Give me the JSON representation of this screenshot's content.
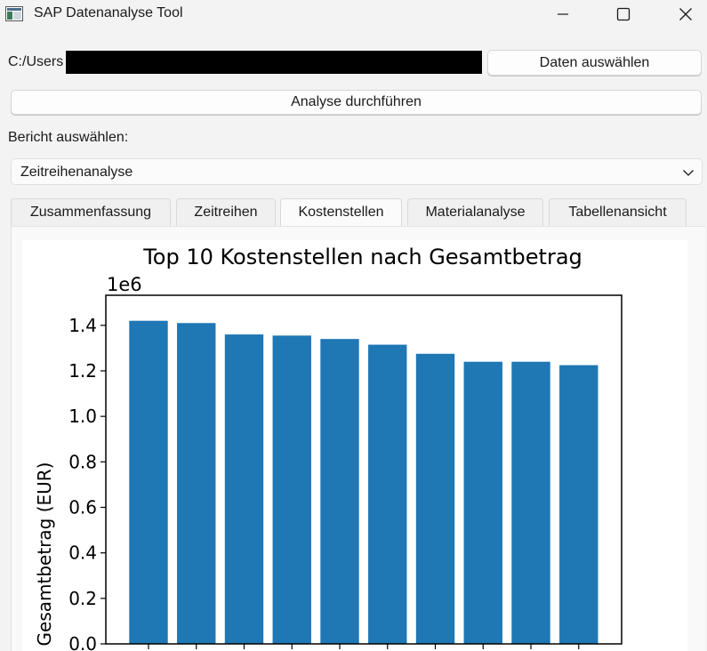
{
  "window": {
    "title": "SAP Datenanalyse Tool"
  },
  "file": {
    "path_visible": "C:/Users"
  },
  "buttons": {
    "select_data": "Daten auswählen",
    "run_analysis": "Analyse durchführen"
  },
  "report": {
    "label": "Bericht auswählen:",
    "selected": "Zeitreihenanalyse"
  },
  "tabs": [
    {
      "label": "Zusammenfassung",
      "active": false
    },
    {
      "label": "Zeitreihen",
      "active": false
    },
    {
      "label": "Kostenstellen",
      "active": true
    },
    {
      "label": "Materialanalyse",
      "active": false
    },
    {
      "label": "Tabellenansicht",
      "active": false
    }
  ],
  "chart_data": {
    "type": "bar",
    "title": "Top 10 Kostenstellen nach Gesamtbetrag",
    "ylabel": "Gesamtbetrag (EUR)",
    "y_offset_text": "1e6",
    "ylim": [
      0,
      1.5
    ],
    "yticks": [
      "0.0",
      "0.2",
      "0.4",
      "0.6",
      "0.8",
      "1.0",
      "1.2",
      "1.4"
    ],
    "values": [
      1.42,
      1.41,
      1.36,
      1.355,
      1.34,
      1.315,
      1.275,
      1.24,
      1.24,
      1.225
    ],
    "bar_color": "#1f77b4",
    "grid": false
  }
}
